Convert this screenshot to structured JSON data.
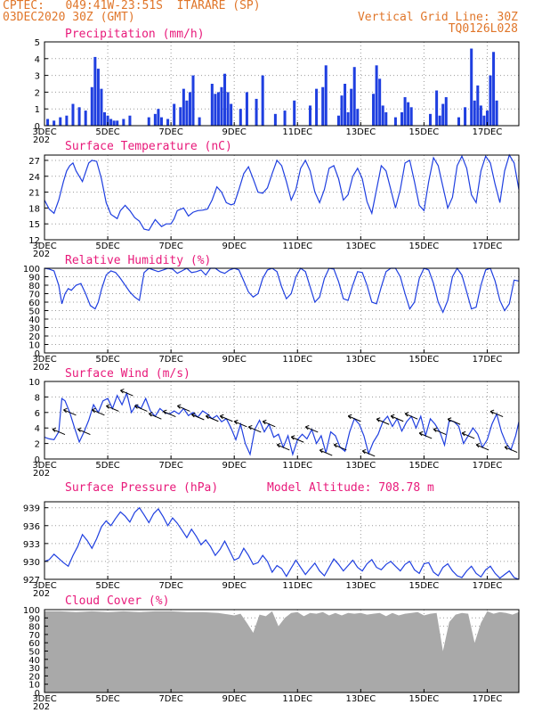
{
  "header": {
    "left_line1": "CPTEC:   049:41W-23:51S  ITARARE (SP)",
    "left_line2": "03DEC2020 30Z (GMT)",
    "right_line1": "Vertical Grid Line: 30Z",
    "right_line2": "TQ0126L028"
  },
  "colors": {
    "line": "#1f3fe0",
    "bar": "#1f3fe0",
    "cloud": "#a9a9a9",
    "title": "#e8197a",
    "header": "#e0762a"
  },
  "x_axis": {
    "tick_labels": [
      "3DEC",
      "5DEC",
      "7DEC",
      "9DEC",
      "11DEC",
      "13DEC",
      "15DEC",
      "17DEC"
    ],
    "tick_days": [
      0,
      2,
      4,
      6,
      8,
      10,
      12,
      14
    ],
    "days_total": 15,
    "clipped_label": "202"
  },
  "chart_data": [
    {
      "type": "bar",
      "title": "Precipitation (mm/h)",
      "ylim": [
        0,
        5
      ],
      "yticks": [
        0,
        1,
        2,
        3,
        4,
        5
      ],
      "x_days": [
        0.1,
        0.3,
        0.5,
        0.7,
        0.9,
        1.1,
        1.3,
        1.5,
        1.6,
        1.7,
        1.8,
        1.9,
        2.0,
        2.1,
        2.2,
        2.3,
        2.5,
        2.7,
        3.3,
        3.5,
        3.6,
        3.7,
        3.9,
        4.1,
        4.3,
        4.4,
        4.5,
        4.6,
        4.7,
        4.9,
        5.3,
        5.4,
        5.5,
        5.6,
        5.7,
        5.8,
        5.9,
        6.2,
        6.4,
        6.7,
        6.9,
        7.3,
        7.6,
        7.9,
        8.4,
        8.6,
        8.8,
        8.9,
        9.3,
        9.4,
        9.5,
        9.6,
        9.7,
        9.8,
        9.9,
        10.4,
        10.5,
        10.6,
        10.7,
        10.8,
        11.1,
        11.3,
        11.4,
        11.5,
        11.6,
        12.2,
        12.4,
        12.5,
        12.6,
        12.7,
        13.1,
        13.3,
        13.5,
        13.6,
        13.7,
        13.8,
        13.9,
        14.0,
        14.1,
        14.2,
        14.3
      ],
      "values": [
        0.4,
        0.3,
        0.5,
        0.6,
        1.3,
        1.1,
        0.9,
        2.3,
        4.1,
        3.4,
        2.2,
        0.8,
        0.6,
        0.4,
        0.3,
        0.3,
        0.4,
        0.6,
        0.5,
        0.7,
        1.0,
        0.5,
        0.4,
        1.3,
        1.1,
        2.2,
        1.5,
        2.0,
        3.0,
        0.5,
        2.5,
        1.9,
        2.0,
        2.3,
        3.1,
        2.0,
        1.3,
        1.0,
        2.0,
        1.6,
        3.0,
        0.7,
        0.9,
        1.5,
        1.2,
        2.2,
        2.3,
        3.6,
        0.6,
        1.8,
        2.5,
        0.8,
        2.2,
        3.5,
        1.0,
        1.9,
        3.6,
        2.8,
        1.2,
        0.8,
        0.5,
        0.8,
        1.7,
        1.4,
        1.1,
        0.7,
        2.1,
        0.6,
        1.3,
        1.7,
        0.5,
        1.1,
        4.6,
        1.5,
        2.4,
        1.2,
        0.6,
        0.9,
        3.0,
        4.4,
        1.5
      ]
    },
    {
      "type": "line",
      "title": "Surface Temperature (nC)",
      "ylim": [
        12,
        28
      ],
      "yticks": [
        12,
        15,
        18,
        21,
        24,
        27
      ],
      "x_days": [
        0.0,
        0.15,
        0.3,
        0.45,
        0.6,
        0.7,
        0.8,
        0.9,
        1.0,
        1.2,
        1.4,
        1.5,
        1.65,
        1.8,
        1.95,
        2.1,
        2.3,
        2.4,
        2.55,
        2.7,
        2.85,
        3.0,
        3.15,
        3.3,
        3.5,
        3.7,
        3.85,
        4.0,
        4.1,
        4.2,
        4.4,
        4.55,
        4.7,
        4.85,
        5.0,
        5.15,
        5.3,
        5.45,
        5.6,
        5.75,
        5.9,
        6.0,
        6.15,
        6.3,
        6.45,
        6.6,
        6.75,
        6.9,
        7.05,
        7.2,
        7.35,
        7.5,
        7.65,
        7.8,
        7.95,
        8.1,
        8.25,
        8.4,
        8.55,
        8.7,
        8.85,
        9.0,
        9.15,
        9.3,
        9.45,
        9.6,
        9.75,
        9.9,
        10.05,
        10.2,
        10.35,
        10.5,
        10.65,
        10.8,
        10.95,
        11.1,
        11.25,
        11.4,
        11.55,
        11.7,
        11.85,
        12.0,
        12.15,
        12.3,
        12.45,
        12.6,
        12.75,
        12.9,
        13.05,
        13.2,
        13.35,
        13.5,
        13.65,
        13.8,
        13.95,
        14.1,
        14.25,
        14.4,
        14.55,
        14.7,
        14.85,
        15.0
      ],
      "values": [
        19.5,
        17.8,
        17.0,
        19.5,
        23.0,
        25.0,
        26.0,
        26.5,
        25.0,
        23.0,
        26.5,
        27.0,
        26.8,
        23.5,
        19.0,
        16.8,
        16.0,
        17.5,
        18.5,
        17.5,
        16.2,
        15.5,
        14.0,
        13.8,
        15.8,
        14.5,
        15.0,
        15.0,
        16.0,
        17.5,
        18.0,
        16.5,
        17.2,
        17.5,
        17.6,
        17.8,
        19.5,
        22.0,
        21.0,
        19.0,
        18.6,
        18.8,
        21.5,
        24.5,
        25.8,
        23.5,
        21.0,
        20.8,
        21.8,
        24.5,
        27.0,
        26.0,
        23.0,
        19.5,
        21.5,
        25.5,
        27.0,
        25.0,
        21.0,
        19.0,
        21.5,
        25.5,
        26.0,
        23.5,
        19.5,
        20.5,
        24.0,
        25.5,
        23.5,
        19.2,
        17.0,
        21.5,
        26.0,
        25.0,
        21.5,
        18.0,
        21.5,
        26.5,
        27.0,
        23.0,
        18.5,
        17.5,
        23.0,
        27.5,
        26.0,
        22.0,
        18.0,
        20.0,
        26.0,
        27.8,
        25.5,
        20.5,
        19.0,
        25.0,
        27.8,
        26.5,
        22.5,
        19.0,
        25.0,
        28.0,
        26.5,
        21.5
      ]
    },
    {
      "type": "line",
      "title": "Relative Humidity (%)",
      "ylim": [
        0,
        100
      ],
      "yticks": [
        0,
        10,
        20,
        30,
        40,
        50,
        60,
        70,
        80,
        90,
        100
      ],
      "x_days": [
        0.0,
        0.15,
        0.3,
        0.45,
        0.55,
        0.65,
        0.75,
        0.85,
        1.0,
        1.15,
        1.3,
        1.45,
        1.6,
        1.7,
        1.8,
        1.95,
        2.1,
        2.25,
        2.4,
        2.55,
        2.7,
        2.85,
        3.0,
        3.15,
        3.3,
        3.45,
        3.6,
        3.75,
        3.9,
        4.05,
        4.2,
        4.35,
        4.5,
        4.65,
        4.8,
        4.95,
        5.1,
        5.25,
        5.4,
        5.55,
        5.7,
        5.85,
        6.0,
        6.15,
        6.3,
        6.45,
        6.6,
        6.75,
        6.9,
        7.05,
        7.2,
        7.35,
        7.5,
        7.65,
        7.8,
        7.95,
        8.1,
        8.25,
        8.4,
        8.55,
        8.7,
        8.85,
        9.0,
        9.15,
        9.3,
        9.45,
        9.6,
        9.75,
        9.9,
        10.05,
        10.2,
        10.35,
        10.5,
        10.65,
        10.8,
        10.95,
        11.1,
        11.25,
        11.4,
        11.55,
        11.7,
        11.85,
        12.0,
        12.15,
        12.3,
        12.45,
        12.6,
        12.75,
        12.9,
        13.05,
        13.2,
        13.35,
        13.5,
        13.65,
        13.8,
        13.95,
        14.1,
        14.25,
        14.4,
        14.55,
        14.7,
        14.85,
        15.0
      ],
      "values": [
        100,
        99,
        97,
        80,
        58,
        70,
        76,
        74,
        80,
        82,
        70,
        56,
        52,
        60,
        75,
        92,
        97,
        95,
        88,
        80,
        72,
        66,
        62,
        95,
        100,
        98,
        96,
        98,
        100,
        99,
        94,
        97,
        100,
        95,
        96,
        98,
        92,
        100,
        100,
        96,
        94,
        98,
        100,
        98,
        85,
        72,
        66,
        70,
        88,
        98,
        100,
        96,
        78,
        64,
        70,
        90,
        100,
        96,
        78,
        60,
        66,
        88,
        100,
        99,
        84,
        64,
        62,
        80,
        96,
        95,
        80,
        60,
        58,
        78,
        96,
        100,
        100,
        90,
        70,
        52,
        60,
        88,
        100,
        98,
        82,
        60,
        48,
        62,
        90,
        100,
        92,
        72,
        52,
        54,
        80,
        98,
        100,
        85,
        62,
        50,
        58,
        86,
        85
      ]
    },
    {
      "type": "line",
      "title": "Surface Wind (m/s)",
      "ylim": [
        0,
        10
      ],
      "yticks": [
        0,
        2,
        4,
        6,
        8,
        10
      ],
      "x_days": [
        0.0,
        0.15,
        0.3,
        0.45,
        0.55,
        0.65,
        0.8,
        0.95,
        1.1,
        1.25,
        1.4,
        1.55,
        1.7,
        1.85,
        2.0,
        2.15,
        2.3,
        2.45,
        2.6,
        2.75,
        2.9,
        3.05,
        3.2,
        3.35,
        3.5,
        3.65,
        3.8,
        3.95,
        4.1,
        4.25,
        4.4,
        4.55,
        4.7,
        4.85,
        5.0,
        5.15,
        5.3,
        5.45,
        5.6,
        5.75,
        5.9,
        6.05,
        6.2,
        6.35,
        6.5,
        6.65,
        6.8,
        6.95,
        7.1,
        7.25,
        7.4,
        7.55,
        7.7,
        7.85,
        8.0,
        8.15,
        8.3,
        8.45,
        8.6,
        8.75,
        8.9,
        9.05,
        9.2,
        9.35,
        9.5,
        9.65,
        9.8,
        9.95,
        10.1,
        10.25,
        10.4,
        10.55,
        10.7,
        10.85,
        11.0,
        11.15,
        11.3,
        11.45,
        11.6,
        11.75,
        11.9,
        12.05,
        12.2,
        12.35,
        12.5,
        12.65,
        12.8,
        12.95,
        13.1,
        13.25,
        13.4,
        13.55,
        13.7,
        13.85,
        14.0,
        14.15,
        14.3,
        14.45,
        14.6,
        14.75,
        14.9,
        15.0
      ],
      "values": [
        2.8,
        2.6,
        2.5,
        3.5,
        7.8,
        7.5,
        6.0,
        4.0,
        2.2,
        3.5,
        5.0,
        7.0,
        6.0,
        7.5,
        7.8,
        6.5,
        8.2,
        7.0,
        8.5,
        6.0,
        7.0,
        6.5,
        7.8,
        6.2,
        5.5,
        6.5,
        6.0,
        5.8,
        6.2,
        5.8,
        6.5,
        5.6,
        6.0,
        5.4,
        6.2,
        5.8,
        5.2,
        5.6,
        4.8,
        5.2,
        4.0,
        2.5,
        4.5,
        2.0,
        0.6,
        3.8,
        5.0,
        3.5,
        4.5,
        2.8,
        3.2,
        1.5,
        3.0,
        0.6,
        2.5,
        3.2,
        2.6,
        3.8,
        2.0,
        3.0,
        0.8,
        3.5,
        3.0,
        1.5,
        1.0,
        3.5,
        5.2,
        4.5,
        3.0,
        0.7,
        2.2,
        3.2,
        4.8,
        5.5,
        4.2,
        5.2,
        3.6,
        4.8,
        5.5,
        4.0,
        5.5,
        3.0,
        5.2,
        4.5,
        3.5,
        1.8,
        5.0,
        4.8,
        4.2,
        2.0,
        3.0,
        4.0,
        3.2,
        1.5,
        2.5,
        4.5,
        5.8,
        3.5,
        2.0,
        1.2,
        3.0,
        4.8
      ]
    },
    {
      "type": "line",
      "title": "Surface Pressure (hPa)",
      "annotation": "Model Altitude: 708.78 m",
      "ylim": [
        927,
        940
      ],
      "yticks": [
        927,
        930,
        933,
        936,
        939
      ],
      "x_days": [
        0.0,
        0.15,
        0.3,
        0.45,
        0.6,
        0.75,
        0.9,
        1.05,
        1.2,
        1.35,
        1.5,
        1.65,
        1.8,
        1.95,
        2.1,
        2.25,
        2.4,
        2.55,
        2.7,
        2.85,
        3.0,
        3.15,
        3.3,
        3.45,
        3.6,
        3.75,
        3.9,
        4.05,
        4.2,
        4.35,
        4.5,
        4.65,
        4.8,
        4.95,
        5.1,
        5.25,
        5.4,
        5.55,
        5.7,
        5.85,
        6.0,
        6.15,
        6.3,
        6.45,
        6.6,
        6.75,
        6.9,
        7.05,
        7.2,
        7.35,
        7.5,
        7.65,
        7.8,
        7.95,
        8.1,
        8.25,
        8.4,
        8.55,
        8.7,
        8.85,
        9.0,
        9.15,
        9.3,
        9.45,
        9.6,
        9.75,
        9.9,
        10.05,
        10.2,
        10.35,
        10.5,
        10.65,
        10.8,
        10.95,
        11.1,
        11.25,
        11.4,
        11.55,
        11.7,
        11.85,
        12.0,
        12.15,
        12.3,
        12.45,
        12.6,
        12.75,
        12.9,
        13.05,
        13.2,
        13.35,
        13.5,
        13.65,
        13.8,
        13.95,
        14.1,
        14.25,
        14.4,
        14.55,
        14.7,
        14.85,
        15.0
      ],
      "values": [
        930.0,
        930.3,
        931.2,
        930.5,
        929.8,
        929.2,
        931.0,
        932.5,
        934.5,
        933.5,
        932.2,
        933.8,
        935.8,
        936.8,
        936.0,
        937.2,
        938.3,
        937.6,
        936.6,
        938.2,
        939.0,
        937.8,
        936.5,
        938.0,
        938.8,
        937.5,
        936.0,
        937.3,
        936.4,
        935.2,
        934.0,
        935.4,
        934.2,
        932.8,
        933.6,
        932.5,
        931.0,
        932.0,
        933.4,
        931.8,
        930.2,
        930.6,
        932.2,
        931.0,
        929.5,
        929.8,
        931.0,
        930.0,
        928.2,
        929.3,
        928.8,
        927.5,
        928.9,
        930.2,
        929.0,
        927.8,
        928.8,
        929.7,
        928.4,
        927.6,
        929.0,
        930.4,
        929.5,
        928.4,
        929.3,
        930.2,
        929.0,
        928.4,
        929.6,
        930.3,
        929.0,
        928.6,
        929.5,
        930.0,
        929.2,
        928.4,
        929.5,
        930.0,
        928.6,
        928.0,
        929.6,
        929.8,
        928.2,
        927.6,
        929.0,
        929.6,
        928.4,
        927.6,
        927.3,
        928.4,
        929.2,
        928.0,
        927.4,
        928.6,
        929.2,
        928.0,
        927.2,
        927.8,
        928.4,
        927.3,
        927.0
      ]
    },
    {
      "type": "area",
      "title": "Cloud Cover (%)",
      "ylim": [
        0,
        100
      ],
      "yticks": [
        0,
        10,
        20,
        30,
        40,
        50,
        60,
        70,
        80,
        90,
        100
      ],
      "x_days": [
        0.0,
        0.5,
        1.0,
        1.5,
        2.0,
        2.5,
        3.0,
        3.5,
        4.0,
        4.5,
        5.0,
        5.5,
        6.0,
        6.2,
        6.4,
        6.6,
        6.8,
        7.0,
        7.2,
        7.4,
        7.6,
        7.8,
        8.0,
        8.2,
        8.4,
        8.6,
        8.8,
        9.0,
        9.2,
        9.4,
        9.6,
        9.8,
        10.0,
        10.2,
        10.4,
        10.6,
        10.8,
        11.0,
        11.2,
        11.4,
        11.6,
        11.8,
        12.0,
        12.2,
        12.4,
        12.6,
        12.8,
        13.0,
        13.2,
        13.4,
        13.6,
        13.8,
        14.0,
        14.2,
        14.4,
        14.6,
        14.8,
        15.0
      ],
      "values": [
        98,
        98,
        97,
        98,
        97,
        98,
        97,
        98,
        98,
        97,
        97,
        96,
        93,
        95,
        84,
        72,
        94,
        92,
        98,
        80,
        90,
        96,
        97,
        92,
        96,
        95,
        97,
        93,
        96,
        93,
        96,
        95,
        96,
        94,
        95,
        96,
        92,
        96,
        93,
        95,
        96,
        97,
        93,
        95,
        96,
        50,
        85,
        94,
        96,
        95,
        60,
        84,
        98,
        95,
        97,
        96,
        94,
        97
      ]
    }
  ]
}
